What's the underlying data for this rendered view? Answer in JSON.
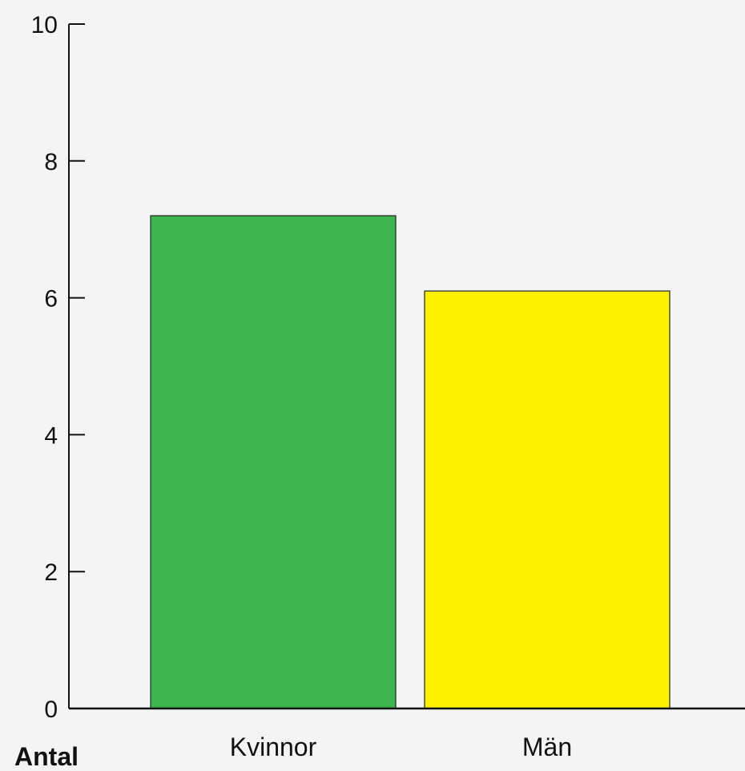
{
  "chart_data": {
    "type": "bar",
    "categories": [
      "Kvinnor",
      "Män"
    ],
    "values": [
      7.2,
      6.1
    ],
    "colors": [
      "#3cb64c",
      "#fff200"
    ],
    "ylabel": "Antal",
    "xlabel": "",
    "ylim": [
      0,
      10
    ],
    "yticks": [
      0,
      2,
      4,
      6,
      8,
      10
    ],
    "grid": false,
    "legend": "none"
  }
}
